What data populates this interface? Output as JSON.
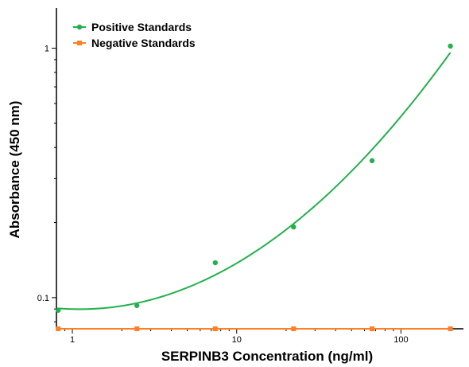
{
  "chart_data": {
    "type": "scatter",
    "xlabel": "SERPINB3 Concentration (ng/ml)",
    "ylabel": "Absorbance (450 nm)",
    "xscale": "log",
    "yscale": "log",
    "xlim": [
      0.8,
      240
    ],
    "ylim": [
      0.075,
      1.45
    ],
    "xticks": [
      1,
      10,
      100
    ],
    "xtick_labels": [
      "1",
      "10",
      "100"
    ],
    "yticks": [
      0.1,
      1
    ],
    "ytick_labels": [
      "0.1",
      "1"
    ],
    "grid": false,
    "legend_position": "top-left",
    "series": [
      {
        "name": "Positive Standards",
        "color": "#22b14c",
        "marker": "circle",
        "fit_curve": true,
        "x": [
          0.82,
          2.47,
          7.41,
          22.2,
          66.7,
          200
        ],
        "y": [
          0.089,
          0.093,
          0.138,
          0.192,
          0.354,
          1.02
        ]
      },
      {
        "name": "Negative Standards",
        "color": "#ff7f27",
        "marker": "square",
        "fit_curve": false,
        "x": [
          0.82,
          2.47,
          7.41,
          22.2,
          66.7,
          200
        ],
        "y": [
          0.075,
          0.075,
          0.075,
          0.075,
          0.075,
          0.075
        ]
      }
    ]
  }
}
